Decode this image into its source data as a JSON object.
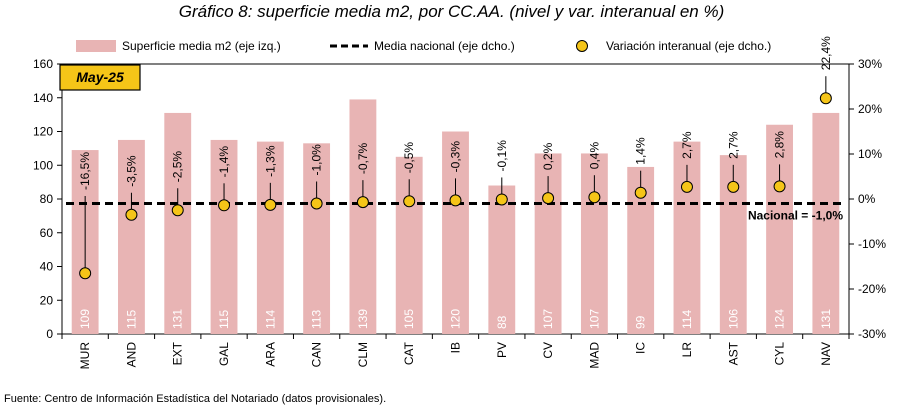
{
  "title": "Gráfico 8: superficie media m2, por CC.AA. (nivel y var. interanual en %)",
  "source": "Fuente: Centro de Información Estadística del Notariado (datos provisionales).",
  "chart_data": {
    "type": "bar",
    "period_label": "May-25",
    "categories": [
      "MUR",
      "AND",
      "EXT",
      "GAL",
      "ARA",
      "CAN",
      "CLM",
      "CAT",
      "IB",
      "PV",
      "CV",
      "MAD",
      "IC",
      "LR",
      "AST",
      "CYL",
      "NAV"
    ],
    "series": [
      {
        "name": "Superficie media m2 (eje izq.)",
        "type": "bar",
        "axis": "left",
        "color": "#e8b4b4",
        "values": [
          109,
          115,
          131,
          115,
          114,
          113,
          139,
          105,
          120,
          88,
          107,
          107,
          99,
          114,
          106,
          124,
          131
        ],
        "labels": [
          "109",
          "115",
          "131",
          "115",
          "114",
          "113",
          "139",
          "105",
          "120",
          "88",
          "107",
          "107",
          "99",
          "114",
          "106",
          "124",
          "131"
        ]
      },
      {
        "name": "Media nacional (eje dcho.)",
        "type": "line",
        "axis": "right",
        "color": "#000000",
        "value": -1.0,
        "annotation": "Nacional = -1,0%"
      },
      {
        "name": "Variación interanual (eje dcho.)",
        "type": "scatter",
        "axis": "right",
        "color": "#f5c518",
        "values": [
          -16.5,
          -3.5,
          -2.5,
          -1.4,
          -1.3,
          -1.0,
          -0.7,
          -0.5,
          -0.3,
          -0.1,
          0.2,
          0.4,
          1.4,
          2.7,
          2.7,
          2.8,
          22.4
        ],
        "labels": [
          "-16,5%",
          "-3,5%",
          "-2,5%",
          "-1,4%",
          "-1,3%",
          "-1,0%",
          "-0,7%",
          "-0,5%",
          "-0,3%",
          "-0,1%",
          "0,2%",
          "0,4%",
          "1,4%",
          "2,7%",
          "2,7%",
          "2,8%",
          "22,4%"
        ]
      }
    ],
    "y_left": {
      "min": 0,
      "max": 160,
      "ticks": [
        0,
        20,
        40,
        60,
        80,
        100,
        120,
        140,
        160
      ],
      "tick_labels": [
        "0",
        "20",
        "40",
        "60",
        "80",
        "100",
        "120",
        "140",
        "160"
      ]
    },
    "y_right": {
      "min": -30,
      "max": 30,
      "ticks": [
        -30,
        -20,
        -10,
        0,
        10,
        20,
        30
      ],
      "tick_labels": [
        "-30%",
        "-20%",
        "-10%",
        "0%",
        "10%",
        "20%",
        "30%"
      ]
    },
    "grid": false,
    "legend_position": "top"
  }
}
